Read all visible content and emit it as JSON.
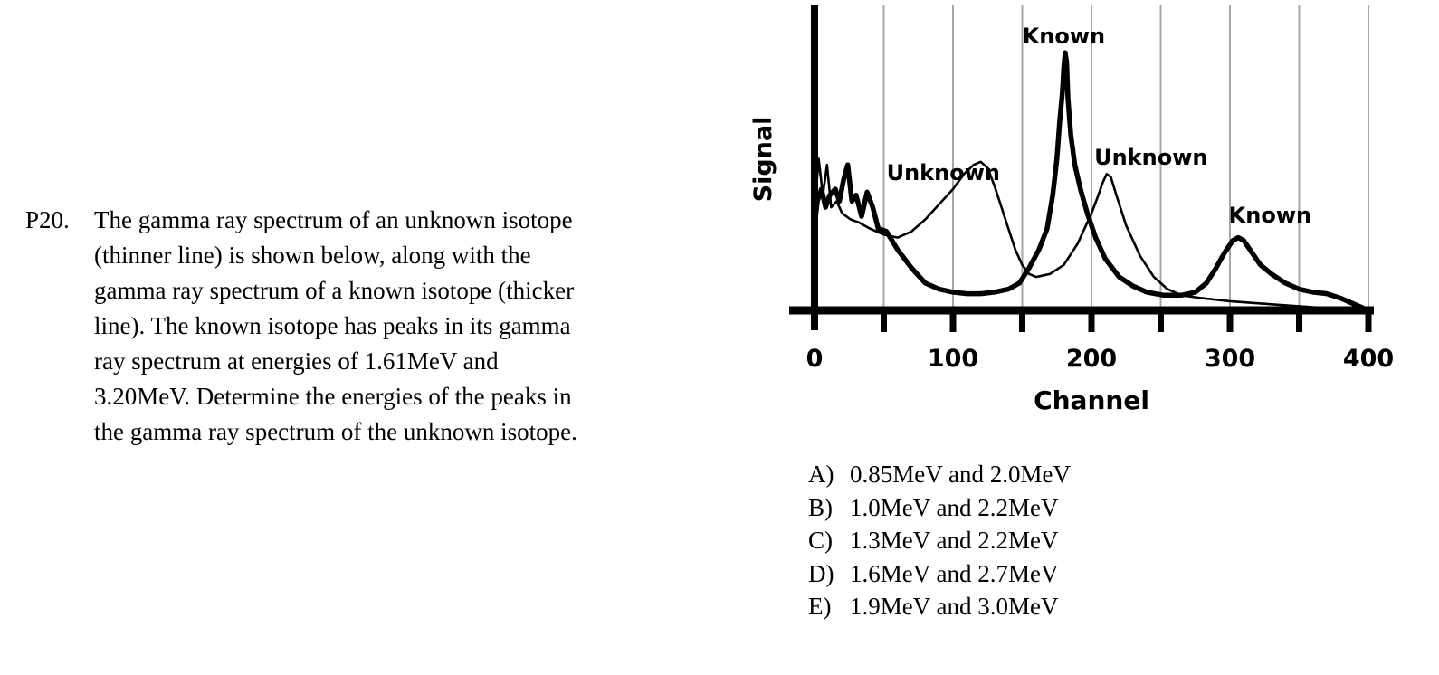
{
  "question": {
    "number": "P20.",
    "text": "The gamma ray spectrum of an unknown isotope\n(thinner line) is shown below, along with the\ngamma ray spectrum of a known isotope (thicker\nline).  The known isotope has peaks in its gamma\nray spectrum at energies of 1.61MeV and\n3.20MeV.  Determine the energies of the peaks in\nthe gamma ray spectrum of the unknown isotope."
  },
  "answers": [
    {
      "letter": "A)",
      "text": "0.85MeV and 2.0MeV"
    },
    {
      "letter": "B)",
      "text": "1.0MeV and 2.2MeV"
    },
    {
      "letter": "C)",
      "text": "1.3MeV and 2.2MeV"
    },
    {
      "letter": "D)",
      "text": "1.6MeV and 2.7MeV"
    },
    {
      "letter": "E)",
      "text": "1.9MeV and 3.0MeV"
    }
  ],
  "chart_data": {
    "type": "line",
    "title": "",
    "xlabel": "Channel",
    "ylabel": "Signal",
    "xlim": [
      0,
      400
    ],
    "ylim": [
      0,
      100
    ],
    "x_ticks": [
      0,
      100,
      200,
      300,
      400
    ],
    "x_minor_ticks": [
      50,
      150,
      250,
      350
    ],
    "grid": "vertical lines every 50 channels",
    "legend": "none",
    "annotations": [
      {
        "text": "Known",
        "x": 180,
        "y": 88
      },
      {
        "text": "Unknown",
        "x": 93,
        "y": 43
      },
      {
        "text": "Unknown",
        "x": 243,
        "y": 48
      },
      {
        "text": "Known",
        "x": 329,
        "y": 29
      }
    ],
    "series": [
      {
        "line": "thin",
        "color": "#000000",
        "points": [
          [
            0,
            33
          ],
          [
            3,
            50
          ],
          [
            6,
            38
          ],
          [
            9,
            48
          ],
          [
            12,
            34
          ],
          [
            16,
            36
          ],
          [
            20,
            32
          ],
          [
            26,
            30
          ],
          [
            32,
            29
          ],
          [
            40,
            27
          ],
          [
            50,
            25
          ],
          [
            60,
            24
          ],
          [
            70,
            26
          ],
          [
            80,
            30
          ],
          [
            90,
            35
          ],
          [
            100,
            40
          ],
          [
            108,
            45
          ],
          [
            115,
            48
          ],
          [
            120,
            49
          ],
          [
            125,
            47
          ],
          [
            130,
            41
          ],
          [
            135,
            34
          ],
          [
            140,
            27
          ],
          [
            145,
            20
          ],
          [
            150,
            15
          ],
          [
            155,
            12
          ],
          [
            160,
            11
          ],
          [
            170,
            12
          ],
          [
            180,
            15
          ],
          [
            190,
            22
          ],
          [
            200,
            32
          ],
          [
            205,
            38
          ],
          [
            208,
            42
          ],
          [
            211,
            45
          ],
          [
            214,
            44
          ],
          [
            218,
            38
          ],
          [
            225,
            28
          ],
          [
            235,
            18
          ],
          [
            245,
            11
          ],
          [
            255,
            7
          ],
          [
            265,
            5
          ],
          [
            280,
            4
          ],
          [
            300,
            3
          ],
          [
            330,
            2
          ],
          [
            360,
            1
          ],
          [
            380,
            0.5
          ],
          [
            400,
            0
          ]
        ]
      },
      {
        "line": "thick",
        "color": "#000000",
        "points": [
          [
            0,
            28
          ],
          [
            2,
            36
          ],
          [
            5,
            40
          ],
          [
            8,
            34
          ],
          [
            11,
            38
          ],
          [
            15,
            40
          ],
          [
            18,
            36
          ],
          [
            21,
            43
          ],
          [
            24,
            48
          ],
          [
            27,
            36
          ],
          [
            30,
            38
          ],
          [
            34,
            31
          ],
          [
            38,
            39
          ],
          [
            42,
            34
          ],
          [
            46,
            27
          ],
          [
            52,
            26
          ],
          [
            60,
            20
          ],
          [
            70,
            14
          ],
          [
            80,
            9
          ],
          [
            90,
            7
          ],
          [
            100,
            6
          ],
          [
            110,
            5.5
          ],
          [
            120,
            5.5
          ],
          [
            130,
            6
          ],
          [
            140,
            7
          ],
          [
            148,
            9
          ],
          [
            155,
            14
          ],
          [
            162,
            20
          ],
          [
            168,
            27
          ],
          [
            172,
            38
          ],
          [
            175,
            50
          ],
          [
            177,
            62
          ],
          [
            179,
            72
          ],
          [
            180,
            80
          ],
          [
            181,
            85
          ],
          [
            182,
            82
          ],
          [
            183,
            70
          ],
          [
            185,
            58
          ],
          [
            188,
            48
          ],
          [
            192,
            40
          ],
          [
            197,
            32
          ],
          [
            203,
            24
          ],
          [
            210,
            17
          ],
          [
            220,
            11
          ],
          [
            230,
            8
          ],
          [
            240,
            6
          ],
          [
            252,
            5
          ],
          [
            265,
            5
          ],
          [
            275,
            6
          ],
          [
            283,
            9
          ],
          [
            290,
            14
          ],
          [
            296,
            19
          ],
          [
            302,
            23
          ],
          [
            306,
            24
          ],
          [
            310,
            23
          ],
          [
            316,
            19
          ],
          [
            322,
            15
          ],
          [
            330,
            12
          ],
          [
            340,
            9
          ],
          [
            350,
            7
          ],
          [
            360,
            6
          ],
          [
            370,
            5.5
          ],
          [
            380,
            4
          ],
          [
            390,
            2
          ],
          [
            400,
            0
          ]
        ]
      }
    ]
  }
}
